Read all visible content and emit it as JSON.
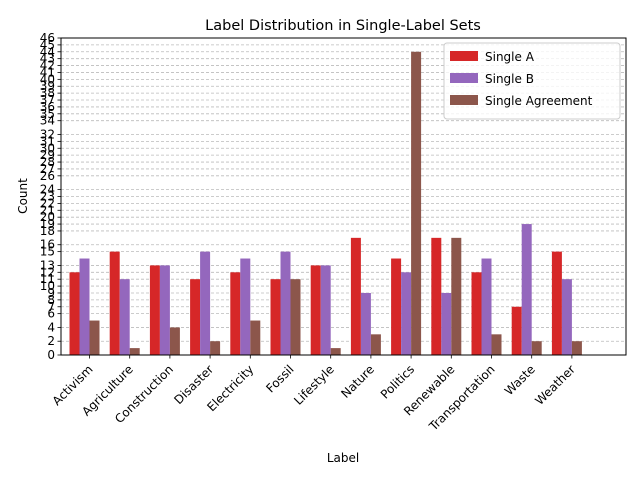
{
  "chart_data": {
    "type": "bar",
    "title": "Label Distribution in Single-Label Sets",
    "xlabel": "Label",
    "ylabel": "Count",
    "ylim": [
      0,
      46
    ],
    "yticks": [
      0,
      2,
      4,
      6,
      7,
      8,
      9,
      10,
      11,
      12,
      13,
      15,
      16,
      18,
      19,
      20,
      21,
      22,
      23,
      24,
      26,
      27,
      28,
      29,
      30,
      31,
      32,
      34,
      35,
      36,
      37,
      38,
      39,
      40,
      41,
      42,
      43,
      44,
      45,
      46
    ],
    "grid": "y-dashed",
    "legend_position": "top-right",
    "categories": [
      "Activism",
      "Agriculture",
      "Construction",
      "Disaster",
      "Electricity",
      "Fossil",
      "Lifestyle",
      "Nature",
      "Politics",
      "Renewable",
      "Transportation",
      "Waste",
      "Weather"
    ],
    "series": [
      {
        "name": "Single A",
        "color": "#d62728",
        "values": [
          12,
          15,
          13,
          11,
          12,
          11,
          13,
          17,
          14,
          17,
          12,
          7,
          15
        ]
      },
      {
        "name": "Single B",
        "color": "#9467bd",
        "values": [
          14,
          11,
          13,
          15,
          14,
          15,
          13,
          9,
          12,
          9,
          14,
          19,
          11
        ]
      },
      {
        "name": "Single Agreement",
        "color": "#8c564b",
        "values": [
          5,
          1,
          4,
          2,
          5,
          11,
          1,
          3,
          44,
          17,
          3,
          2,
          2
        ]
      }
    ]
  }
}
